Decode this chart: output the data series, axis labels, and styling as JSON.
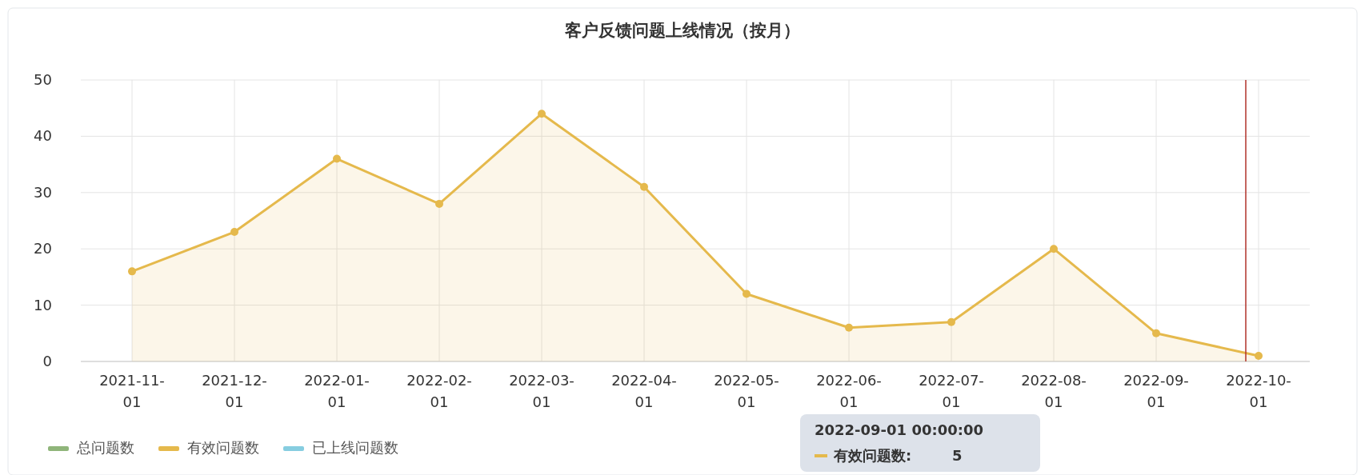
{
  "chart_data": {
    "type": "area",
    "title": "客户反馈问题上线情况（按月）",
    "categories": [
      "2021-11-01",
      "2021-12-01",
      "2022-01-01",
      "2022-02-01",
      "2022-03-01",
      "2022-04-01",
      "2022-05-01",
      "2022-06-01",
      "2022-07-01",
      "2022-08-01",
      "2022-09-01",
      "2022-10-01"
    ],
    "series": [
      {
        "name": "总问题数",
        "color": "#8fb57a",
        "values": [
          null,
          null,
          null,
          null,
          null,
          null,
          null,
          null,
          null,
          null,
          null,
          null
        ]
      },
      {
        "name": "有效问题数",
        "color": "#e5b94c",
        "values": [
          16,
          23,
          36,
          28,
          44,
          31,
          12,
          6,
          7,
          20,
          5,
          1
        ]
      },
      {
        "name": "已上线问题数",
        "color": "#86cde0",
        "values": [
          null,
          null,
          null,
          null,
          null,
          null,
          null,
          null,
          null,
          null,
          null,
          null
        ]
      }
    ],
    "ylim": [
      0,
      50
    ],
    "yticks": [
      0,
      10,
      20,
      30,
      40,
      50
    ],
    "grid": true,
    "legend": "bottom left",
    "marker": "circle",
    "ref_lines": [
      {
        "axis": "x",
        "value": "2022-10-01",
        "color": "#b0322a"
      }
    ],
    "annotations": [
      "2022-09-01 00:00:00",
      "有效问题数:",
      "5"
    ]
  }
}
